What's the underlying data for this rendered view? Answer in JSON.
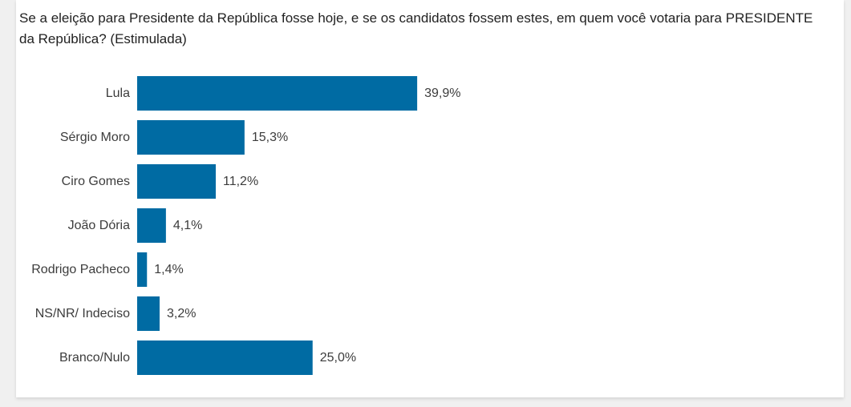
{
  "chart_data": {
    "type": "bar",
    "orientation": "horizontal",
    "title": "Se a eleição para Presidente da República fosse hoje, e se os candidatos fossem estes, em quem você votaria para PRESIDENTE da República? (Estimulada)",
    "categories": [
      "Lula",
      "Sérgio Moro",
      "Ciro Gomes",
      "João Dória",
      "Rodrigo Pacheco",
      "NS/NR/ Indeciso",
      "Branco/Nulo"
    ],
    "values": [
      39.9,
      15.3,
      11.2,
      4.1,
      1.4,
      3.2,
      25.0
    ],
    "value_labels": [
      "39,9%",
      "15,3%",
      "11,2%",
      "4,1%",
      "1,4%",
      "3,2%",
      "25,0%"
    ],
    "xlabel": "",
    "ylabel": "",
    "grid": false,
    "legend": "none",
    "bar_color": "#006ba3"
  }
}
